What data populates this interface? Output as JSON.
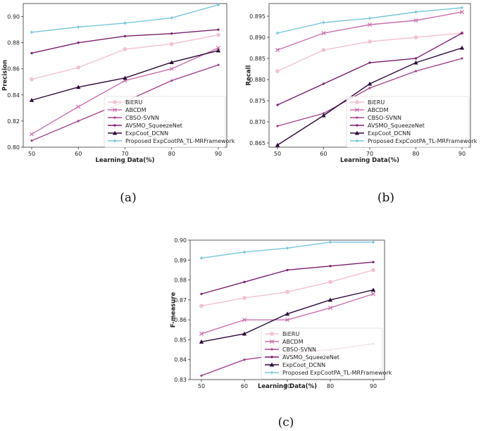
{
  "chart_data": [
    {
      "type": "line",
      "caption": "(a)",
      "xlabel": "Learning Data(%)",
      "ylabel": "Precision",
      "x": [
        50,
        60,
        70,
        80,
        90
      ],
      "xticks": [
        "50",
        "60",
        "70",
        "80",
        "90"
      ],
      "ylim": [
        0.8,
        0.91
      ],
      "yticks": [
        "0.80",
        "0.82",
        "0.84",
        "0.86",
        "0.88",
        "0.90"
      ],
      "legend_placement": "bottom-right",
      "grid": false,
      "series": [
        {
          "name": "BiERU",
          "color": "#f3c1d3",
          "marker": "circle",
          "values": [
            0.852,
            0.861,
            0.875,
            0.879,
            0.886
          ]
        },
        {
          "name": "ABCDM",
          "color": "#cc6fae",
          "marker": "x",
          "values": [
            0.81,
            0.831,
            0.851,
            0.86,
            0.876
          ]
        },
        {
          "name": "CBSO-SVNN",
          "color": "#a5448c",
          "marker": "dot",
          "values": [
            0.805,
            0.82,
            0.835,
            0.851,
            0.863
          ]
        },
        {
          "name": "AVSMO_SqueezeNet",
          "color": "#7a1e6c",
          "marker": "dot",
          "values": [
            0.872,
            0.88,
            0.885,
            0.887,
            0.89
          ]
        },
        {
          "name": "ExpCoot_DCNN",
          "color": "#2c0b3a",
          "marker": "triangle",
          "values": [
            0.836,
            0.846,
            0.853,
            0.865,
            0.874
          ]
        },
        {
          "name": "Proposed ExpCootPA_TL-MRFramework",
          "color": "#79c6dc",
          "marker": "star",
          "values": [
            0.888,
            0.892,
            0.895,
            0.899,
            0.909
          ]
        }
      ]
    },
    {
      "type": "line",
      "caption": "(b)",
      "xlabel": "Learning Data(%)",
      "ylabel": "Recall",
      "x": [
        50,
        60,
        70,
        80,
        90
      ],
      "xticks": [
        "50",
        "60",
        "70",
        "80",
        "90"
      ],
      "ylim": [
        0.864,
        0.898
      ],
      "yticks": [
        "0.865",
        "0.870",
        "0.875",
        "0.880",
        "0.885",
        "0.890",
        "0.895"
      ],
      "legend_placement": "bottom-right",
      "grid": false,
      "series": [
        {
          "name": "BiERU",
          "color": "#f3c1d3",
          "marker": "circle",
          "values": [
            0.882,
            0.887,
            0.889,
            0.89,
            0.891
          ]
        },
        {
          "name": "ABCDM",
          "color": "#cc6fae",
          "marker": "x",
          "values": [
            0.887,
            0.891,
            0.893,
            0.894,
            0.896
          ]
        },
        {
          "name": "CBSO-SVNN",
          "color": "#a5448c",
          "marker": "dot",
          "values": [
            0.869,
            0.872,
            0.878,
            0.882,
            0.885
          ]
        },
        {
          "name": "AVSMO_SqueezeNet",
          "color": "#7a1e6c",
          "marker": "dot",
          "values": [
            0.874,
            0.879,
            0.884,
            0.885,
            0.891
          ]
        },
        {
          "name": "ExpCoot_DCNN",
          "color": "#2c0b3a",
          "marker": "triangle",
          "values": [
            0.8645,
            0.8715,
            0.879,
            0.884,
            0.8875
          ]
        },
        {
          "name": "Proposed ExpCootPA_TL-MRFramework",
          "color": "#79c6dc",
          "marker": "star",
          "values": [
            0.891,
            0.8935,
            0.8945,
            0.896,
            0.897
          ]
        }
      ]
    },
    {
      "type": "line",
      "caption": "(c)",
      "xlabel": "Learning Data(%)",
      "ylabel": "F-measure",
      "x": [
        50,
        60,
        70,
        80,
        90
      ],
      "xticks": [
        "50",
        "60",
        "70",
        "80",
        "90"
      ],
      "ylim": [
        0.83,
        0.9
      ],
      "yticks": [
        "0.83",
        "0.84",
        "0.85",
        "0.86",
        "0.87",
        "0.88",
        "0.89",
        "0.90"
      ],
      "legend_placement": "bottom-right",
      "grid": false,
      "series": [
        {
          "name": "BiERU",
          "color": "#f3c1d3",
          "marker": "circle",
          "values": [
            0.867,
            0.871,
            0.874,
            0.879,
            0.885
          ]
        },
        {
          "name": "ABCDM",
          "color": "#cc6fae",
          "marker": "x",
          "values": [
            0.853,
            0.86,
            0.86,
            0.866,
            0.873
          ]
        },
        {
          "name": "CBSO-SVNN",
          "color": "#a5448c",
          "marker": "dot",
          "values": [
            0.832,
            0.84,
            0.843,
            0.845,
            0.848
          ]
        },
        {
          "name": "AVSMO_SqueezeNet",
          "color": "#7a1e6c",
          "marker": "dot",
          "values": [
            0.873,
            0.879,
            0.885,
            0.887,
            0.889
          ]
        },
        {
          "name": "ExpCoot_DCNN",
          "color": "#2c0b3a",
          "marker": "triangle",
          "values": [
            0.849,
            0.853,
            0.863,
            0.87,
            0.875
          ]
        },
        {
          "name": "Proposed ExpCootPA_TL-MRFramework",
          "color": "#79c6dc",
          "marker": "star",
          "values": [
            0.891,
            0.894,
            0.896,
            0.899,
            0.899
          ]
        }
      ]
    }
  ]
}
